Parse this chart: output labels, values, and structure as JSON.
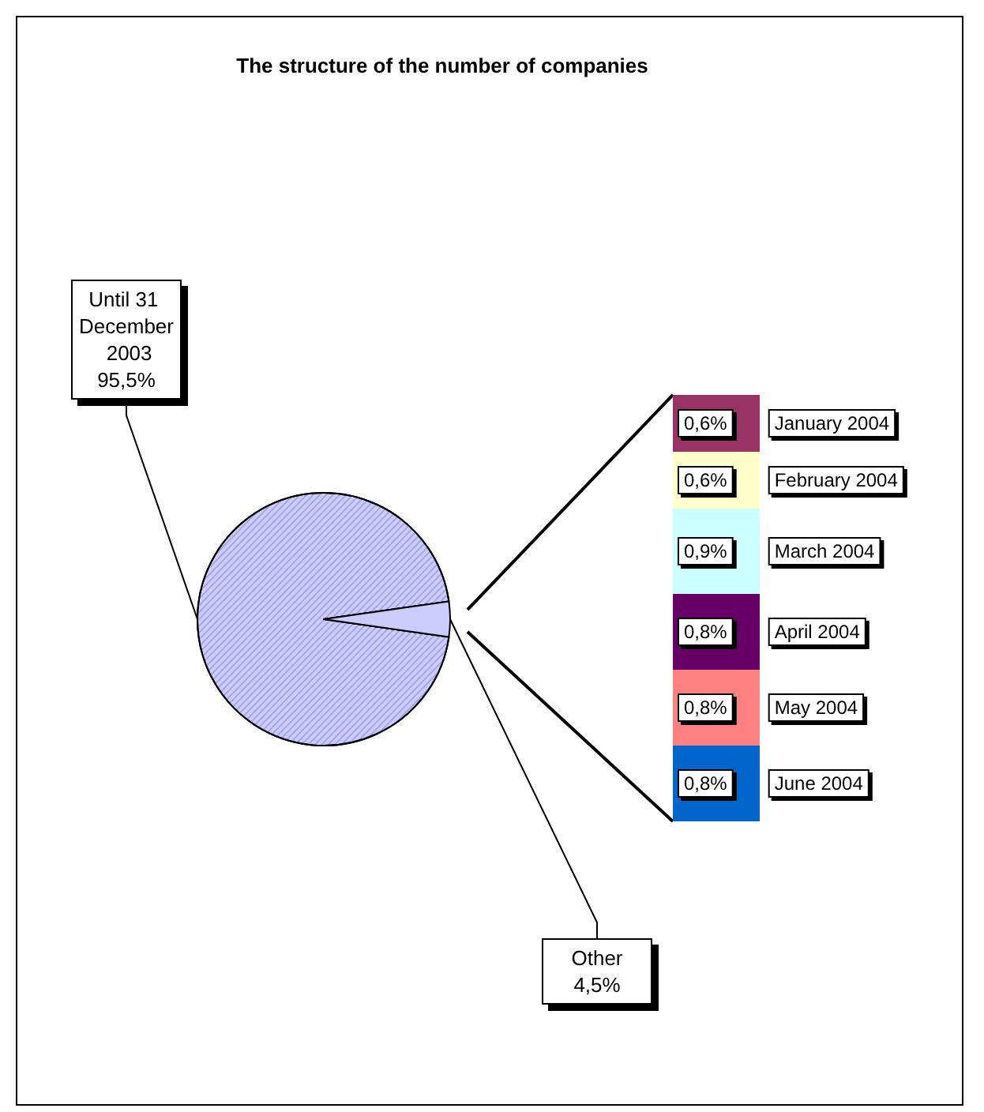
{
  "chart_data": [
    {
      "type": "pie",
      "title": "The structure of the number of companies",
      "categories": [
        "Until 31 December 2003",
        "Other"
      ],
      "values": [
        95.5,
        4.5
      ],
      "colors": [
        "#ccccff",
        "#ccccff"
      ],
      "value_labels": [
        "95,5%",
        "4,5%"
      ]
    },
    {
      "type": "bar",
      "stacked": true,
      "categories": [
        null
      ],
      "series": [
        {
          "name": "June 2004",
          "color": "#0066cc",
          "values": [
            0.8
          ],
          "value_labels": [
            "0,8%"
          ]
        },
        {
          "name": "May 2004",
          "color": "#ff8080",
          "values": [
            0.8
          ],
          "value_labels": [
            "0,8%"
          ]
        },
        {
          "name": "April 2004",
          "color": "#660066",
          "values": [
            0.8
          ],
          "value_labels": [
            "0,8%"
          ]
        },
        {
          "name": "March 2004",
          "color": "#ccffff",
          "values": [
            0.9
          ],
          "value_labels": [
            "0,9%"
          ]
        },
        {
          "name": "February 2004",
          "color": "#ffffcc",
          "values": [
            0.6
          ],
          "value_labels": [
            "0,6%"
          ]
        },
        {
          "name": "January 2004",
          "color": "#993366",
          "values": [
            0.6
          ],
          "value_labels": [
            "0,6%"
          ]
        }
      ]
    }
  ]
}
